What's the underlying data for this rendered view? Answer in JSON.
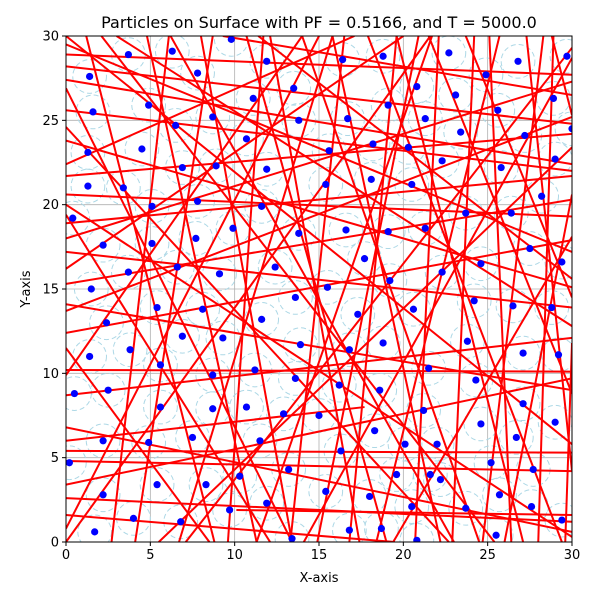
{
  "chart_data": {
    "type": "scatter",
    "title": "Particles on Surface with PF = 0.5166, and T = 5000.0",
    "xlabel": "X-axis",
    "ylabel": "Y-axis",
    "xlim": [
      0,
      30
    ],
    "ylim": [
      0,
      30
    ],
    "xticks": [
      0,
      5,
      10,
      15,
      20,
      25,
      30
    ],
    "yticks": [
      0,
      5,
      10,
      15,
      20,
      25,
      30
    ],
    "grid": true,
    "colors": {
      "particle": "#0000ff",
      "radius_circle": "#add8e6",
      "segment": "#ff0000"
    },
    "particle_radius": 1.0,
    "particles": [
      [
        1.4,
        27.6
      ],
      [
        1.6,
        25.5
      ],
      [
        1.3,
        23.1
      ],
      [
        1.3,
        21.1
      ],
      [
        0.4,
        19.2
      ],
      [
        2.2,
        17.6
      ],
      [
        1.5,
        15.0
      ],
      [
        2.4,
        13.0
      ],
      [
        1.4,
        11.0
      ],
      [
        0.5,
        8.8
      ],
      [
        2.5,
        9.0
      ],
      [
        2.2,
        6.0
      ],
      [
        0.2,
        4.7
      ],
      [
        2.2,
        2.8
      ],
      [
        1.7,
        0.6
      ],
      [
        3.7,
        28.9
      ],
      [
        3.4,
        21.0
      ],
      [
        3.7,
        16.0
      ],
      [
        3.8,
        11.4
      ],
      [
        4.0,
        1.4
      ],
      [
        4.5,
        23.3
      ],
      [
        4.9,
        25.9
      ],
      [
        5.1,
        19.9
      ],
      [
        5.1,
        17.7
      ],
      [
        5.4,
        13.9
      ],
      [
        5.6,
        10.5
      ],
      [
        5.6,
        8.0
      ],
      [
        4.9,
        5.9
      ],
      [
        5.4,
        3.4
      ],
      [
        6.3,
        29.1
      ],
      [
        6.5,
        24.7
      ],
      [
        6.9,
        22.2
      ],
      [
        6.6,
        16.3
      ],
      [
        6.9,
        12.2
      ],
      [
        6.8,
        1.2
      ],
      [
        7.8,
        27.8
      ],
      [
        7.8,
        20.2
      ],
      [
        7.7,
        18.0
      ],
      [
        8.1,
        13.8
      ],
      [
        7.5,
        6.2
      ],
      [
        8.3,
        3.4
      ],
      [
        8.7,
        25.2
      ],
      [
        8.9,
        22.3
      ],
      [
        9.1,
        15.9
      ],
      [
        9.3,
        12.1
      ],
      [
        8.7,
        9.9
      ],
      [
        8.7,
        7.9
      ],
      [
        9.8,
        29.8
      ],
      [
        9.9,
        18.6
      ],
      [
        9.7,
        1.9
      ],
      [
        10.3,
        3.9
      ],
      [
        10.7,
        23.9
      ],
      [
        10.7,
        8.0
      ],
      [
        11.1,
        26.3
      ],
      [
        11.2,
        10.2
      ],
      [
        11.5,
        6.0
      ],
      [
        11.6,
        19.9
      ],
      [
        11.6,
        13.2
      ],
      [
        11.9,
        28.5
      ],
      [
        11.9,
        22.1
      ],
      [
        11.9,
        2.3
      ],
      [
        12.4,
        16.3
      ],
      [
        12.9,
        7.6
      ],
      [
        13.2,
        4.3
      ],
      [
        13.4,
        0.2
      ],
      [
        13.5,
        26.9
      ],
      [
        13.8,
        25.0
      ],
      [
        13.8,
        18.3
      ],
      [
        13.6,
        14.5
      ],
      [
        13.9,
        11.7
      ],
      [
        13.6,
        9.7
      ],
      [
        15.0,
        7.5
      ],
      [
        15.4,
        21.2
      ],
      [
        15.6,
        23.2
      ],
      [
        15.5,
        15.1
      ],
      [
        15.4,
        3.0
      ],
      [
        16.2,
        9.3
      ],
      [
        16.3,
        5.4
      ],
      [
        16.4,
        28.6
      ],
      [
        16.6,
        18.5
      ],
      [
        16.7,
        25.1
      ],
      [
        16.8,
        11.4
      ],
      [
        16.8,
        0.7
      ],
      [
        17.3,
        13.5
      ],
      [
        17.7,
        16.8
      ],
      [
        18.1,
        21.5
      ],
      [
        18.2,
        23.6
      ],
      [
        18.0,
        2.7
      ],
      [
        18.3,
        6.6
      ],
      [
        18.6,
        9.0
      ],
      [
        18.8,
        28.8
      ],
      [
        18.8,
        11.8
      ],
      [
        18.7,
        0.8
      ],
      [
        19.1,
        25.9
      ],
      [
        19.1,
        18.4
      ],
      [
        19.2,
        15.5
      ],
      [
        19.6,
        4.0
      ],
      [
        20.1,
        5.8
      ],
      [
        20.3,
        23.4
      ],
      [
        20.5,
        21.2
      ],
      [
        20.5,
        2.1
      ],
      [
        20.8,
        27.0
      ],
      [
        20.6,
        13.8
      ],
      [
        20.8,
        0.1
      ],
      [
        21.2,
        7.8
      ],
      [
        21.3,
        25.1
      ],
      [
        21.3,
        18.6
      ],
      [
        21.5,
        10.3
      ],
      [
        21.6,
        4.0
      ],
      [
        22.0,
        5.8
      ],
      [
        22.2,
        3.7
      ],
      [
        22.3,
        16.0
      ],
      [
        22.3,
        22.6
      ],
      [
        22.7,
        29.0
      ],
      [
        23.1,
        26.5
      ],
      [
        23.4,
        24.3
      ],
      [
        23.7,
        19.5
      ],
      [
        23.8,
        11.9
      ],
      [
        23.7,
        2.0
      ],
      [
        24.2,
        14.3
      ],
      [
        24.3,
        9.6
      ],
      [
        24.6,
        16.5
      ],
      [
        24.6,
        7.0
      ],
      [
        24.9,
        27.7
      ],
      [
        25.2,
        4.7
      ],
      [
        25.6,
        25.6
      ],
      [
        25.5,
        0.4
      ],
      [
        25.8,
        22.2
      ],
      [
        25.7,
        2.8
      ],
      [
        26.4,
        19.5
      ],
      [
        26.5,
        14.0
      ],
      [
        26.7,
        6.2
      ],
      [
        26.8,
        28.5
      ],
      [
        27.1,
        11.2
      ],
      [
        27.1,
        8.2
      ],
      [
        27.2,
        24.1
      ],
      [
        27.5,
        17.4
      ],
      [
        27.7,
        4.3
      ],
      [
        27.6,
        2.1
      ],
      [
        28.2,
        20.5
      ],
      [
        28.8,
        13.9
      ],
      [
        28.9,
        26.3
      ],
      [
        29.0,
        22.7
      ],
      [
        29.0,
        7.1
      ],
      [
        29.2,
        11.1
      ],
      [
        29.4,
        16.6
      ],
      [
        29.7,
        28.8
      ],
      [
        30.0,
        24.5
      ],
      [
        29.4,
        1.3
      ]
    ],
    "segments": [
      [
        0,
        28.2,
        30,
        24.8
      ],
      [
        0,
        27.4,
        30,
        22.4
      ],
      [
        0,
        25.6,
        30,
        22.0
      ],
      [
        0,
        21.7,
        30,
        24.2
      ],
      [
        0,
        20.6,
        30,
        19.3
      ],
      [
        0,
        18.9,
        30,
        21.7
      ],
      [
        0,
        17.2,
        30,
        13.9
      ],
      [
        0,
        15.3,
        30,
        20.3
      ],
      [
        0,
        14.1,
        30,
        9.0
      ],
      [
        0,
        12.4,
        30,
        17.9
      ],
      [
        0,
        10.2,
        30,
        10.1
      ],
      [
        0,
        8.7,
        30,
        12.1
      ],
      [
        0,
        5.4,
        30,
        5.3
      ],
      [
        0,
        4.8,
        30,
        4.2
      ],
      [
        0,
        3.4,
        30,
        9.7
      ],
      [
        0,
        6.8,
        30,
        0.6
      ],
      [
        0,
        0.8,
        15,
        30
      ],
      [
        0,
        30,
        30,
        5.8
      ],
      [
        0,
        19.4,
        12.1,
        0
      ],
      [
        0,
        16.2,
        20.0,
        30
      ],
      [
        0,
        11.5,
        8.5,
        0
      ],
      [
        0,
        9.9,
        14.0,
        30
      ],
      [
        0,
        29.5,
        30,
        17.2
      ],
      [
        0,
        23.8,
        30,
        15.1
      ],
      [
        0,
        18.0,
        30,
        27.3
      ],
      [
        0,
        13.7,
        30,
        25.2
      ],
      [
        1.2,
        30,
        8.8,
        0
      ],
      [
        2.7,
        0,
        6.1,
        30
      ],
      [
        4.8,
        30,
        11.3,
        0
      ],
      [
        4.1,
        0,
        8.7,
        30
      ],
      [
        6.2,
        30,
        23.0,
        0
      ],
      [
        6.7,
        0,
        15.8,
        30
      ],
      [
        8.0,
        30,
        13.4,
        0
      ],
      [
        9.6,
        0,
        11.7,
        30
      ],
      [
        10.7,
        30,
        19.0,
        0
      ],
      [
        11.3,
        0,
        21.7,
        30
      ],
      [
        12.1,
        30,
        17.4,
        0
      ],
      [
        13.3,
        0,
        16.5,
        30
      ],
      [
        14.0,
        30,
        24.5,
        0
      ],
      [
        14.9,
        0,
        20.9,
        30
      ],
      [
        15.8,
        30,
        22.2,
        0
      ],
      [
        16.8,
        0,
        19.6,
        30
      ],
      [
        17.9,
        30,
        29.4,
        0
      ],
      [
        18.4,
        0,
        25.7,
        30
      ],
      [
        19.6,
        30,
        27.1,
        0
      ],
      [
        20.7,
        0,
        22.1,
        30
      ],
      [
        21.5,
        30,
        30,
        8.8
      ],
      [
        22.9,
        0,
        24.2,
        30
      ],
      [
        23.7,
        30,
        30,
        14.5
      ],
      [
        24.7,
        0,
        28.3,
        30
      ],
      [
        25.1,
        30,
        26.4,
        0
      ],
      [
        26.0,
        0,
        30,
        20.6
      ],
      [
        27.3,
        30,
        30,
        4.2
      ],
      [
        28.0,
        0,
        28.9,
        30
      ],
      [
        28.8,
        30,
        30,
        25.3
      ],
      [
        29.6,
        0,
        30,
        11.8
      ],
      [
        0,
        2.6,
        30,
        1.2
      ],
      [
        0,
        22.4,
        17.1,
        30
      ],
      [
        3.0,
        30,
        30,
        12.8
      ],
      [
        9.3,
        30,
        30,
        26.5
      ],
      [
        0,
        26.9,
        13.4,
        0
      ],
      [
        0,
        24.6,
        22.7,
        0
      ],
      [
        5.5,
        0,
        30,
        23.4
      ],
      [
        11.4,
        30,
        30,
        15.6
      ],
      [
        14.1,
        0,
        30,
        28.7
      ],
      [
        0,
        0,
        21.6,
        30
      ],
      [
        7.1,
        0,
        30,
        29.3
      ],
      [
        19.4,
        0,
        30,
        18.1
      ],
      [
        0,
        20.0,
        30,
        0.3
      ],
      [
        2.1,
        30,
        25.4,
        0
      ],
      [
        0,
        28.9,
        30,
        27.7
      ],
      [
        0,
        1.6,
        19.5,
        0
      ],
      [
        10.1,
        1.9,
        30,
        1.6
      ],
      [
        0,
        6.0,
        17.7,
        8.0
      ]
    ]
  }
}
